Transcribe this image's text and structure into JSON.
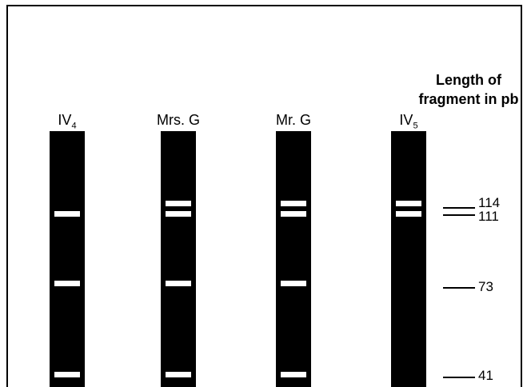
{
  "legend_title": "Length of fragment in pb",
  "lanes": [
    {
      "name": "IV",
      "sub": "4",
      "bands": [
        111,
        73,
        41
      ]
    },
    {
      "name": "Mrs. G",
      "sub": "",
      "bands": [
        114,
        111,
        73,
        41
      ]
    },
    {
      "name": "Mr. G",
      "sub": "",
      "bands": [
        114,
        111,
        73,
        41
      ]
    },
    {
      "name": "IV",
      "sub": "5",
      "bands": [
        114,
        111
      ]
    }
  ],
  "ladder": [
    {
      "size": 114,
      "label": "114"
    },
    {
      "size": 111,
      "label": "111"
    },
    {
      "size": 73,
      "label": "73"
    },
    {
      "size": 41,
      "label": "41"
    }
  ],
  "colors": {
    "lane": "#000000",
    "band": "#ffffff"
  }
}
